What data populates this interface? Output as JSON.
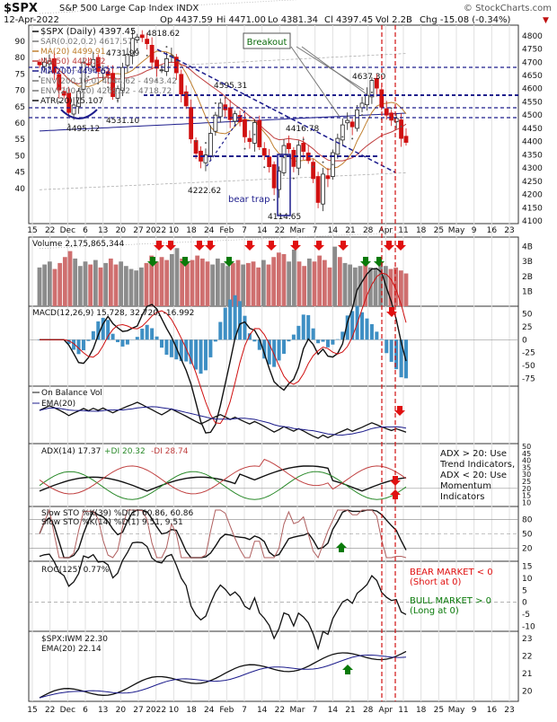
{
  "header": {
    "symbol": "$SPX",
    "name": "S&P 500 Large Cap Index  INDX",
    "date": "12-Apr-2022",
    "open": "Op 4437.59",
    "high": "Hi 4471.00",
    "low": "Lo 4381.34",
    "close": "Cl 4397.45",
    "volume": "Vol 2.2B",
    "change": "Chg -15.08 (-0.34%)",
    "copyright": "© StockCharts.com"
  },
  "colors": {
    "up": "#1f1f1f",
    "down": "#d01010",
    "volUp": "#8c8c8c",
    "volDown": "#cf6f6f",
    "ma20": "#c08030",
    "ma50": "#c04040",
    "ma200": "#1c1c8c",
    "env": "#b0b0b0",
    "arrowGreen": "#0a7a0a",
    "arrowRed": "#e01010",
    "macdHist": "#3e8fc4",
    "bearRed": "#e01010",
    "bullGreen": "#0a7a0a"
  },
  "x_labels": [
    "15",
    "22",
    "Dec",
    "6",
    "13",
    "20",
    "27",
    "2022",
    "10",
    "18",
    "24",
    "Feb",
    "7",
    "14",
    "22",
    "Mar",
    "7",
    "14",
    "21",
    "28",
    "Apr",
    "11",
    "18",
    "25",
    "May",
    "9",
    "16",
    "23"
  ],
  "price_panel": {
    "legend": [
      "$SPX (Daily) 4397.45",
      "SAR(0.02,0.2) 4617.57",
      "MA(20) 4499.91",
      "MA(50) 4424.32",
      "MA(200) 4494.62",
      "ENV(200,10.0) 4044.62 - 4943.42",
      "ENV(200,5.0) 4269.32 - 4718.72",
      "ATR(20) 75.107"
    ],
    "left_ticks": [
      "90",
      "80",
      "75",
      "70",
      "65",
      "60",
      "55",
      "50",
      "45",
      "40"
    ],
    "right_ticks": [
      "4800",
      "4750",
      "4700",
      "4650",
      "4600",
      "4550",
      "4500",
      "4450",
      "4400",
      "4350",
      "4300",
      "4250",
      "4200",
      "4150",
      "4100"
    ],
    "annotations": [
      "4818.62",
      "4731.99",
      "4595.31",
      "4531.10",
      "4495.12",
      "4416.78",
      "4637.30",
      "4222.62",
      "4114.65",
      "Breakout",
      "bear trap"
    ]
  },
  "volume_panel": {
    "legend": "Volume 2,175,865,344",
    "ticks": [
      "4B",
      "3B",
      "2B",
      "1B"
    ]
  },
  "macd_panel": {
    "legend": "MACD(12,26,9) 15.728, 32.720, -16.992",
    "ticks": [
      "50",
      "25",
      "0",
      "-25",
      "-50",
      "-75"
    ]
  },
  "obv_panel": {
    "legend": "On Balance Vol",
    "legend2": "EMA(20)"
  },
  "adx_panel": {
    "legend": "ADX(14) 17.37",
    "plus_di": "+DI 20.32",
    "minus_di": "-DI 28.74",
    "ticks": [
      "50",
      "45",
      "40",
      "35",
      "30",
      "25",
      "20",
      "15",
      "10"
    ],
    "note": [
      "ADX > 20: Use",
      "Trend Indicators,",
      "ADX < 20: Use",
      "Momentum",
      "Indicators"
    ]
  },
  "sto_panel": {
    "legend1": "Slow STO %K(39) %D(1) 60.86, 60.86",
    "legend2": "Slow STO %K(14) %D(1) 9.51, 9.51",
    "ticks": [
      "80",
      "50",
      "20"
    ]
  },
  "roc_panel": {
    "legend": "ROC(125) 0.77%",
    "ticks": [
      "15",
      "10",
      "5",
      "0",
      "-5",
      "-10"
    ],
    "bear": [
      "BEAR MARKET < 0",
      "(Short at 0)"
    ],
    "bull": [
      "BULL MARKET > 0",
      "(Long at 0)"
    ]
  },
  "ratio_panel": {
    "legend": "$SPX:IWM 22.30",
    "legend2": "EMA(20) 22.14",
    "ticks": [
      "23",
      "22",
      "21",
      "20"
    ]
  },
  "chart_data": {
    "type": "line",
    "title": "$SPX S&P 500 Large Cap Index INDX",
    "x_range": [
      "2021-11-15",
      "2022-05-27"
    ],
    "ylim": [
      4090,
      4840
    ],
    "series": [
      {
        "name": "$SPX (Daily) 4397.45",
        "approx_closes": [
          4690,
          4700,
          4705,
          4660,
          4595,
          4575,
          4510,
          4538,
          4590,
          4700,
          4690,
          4710,
          4665,
          4670,
          4650,
          4570,
          4600,
          4680,
          4730,
          4790,
          4795,
          4793,
          4770,
          4700,
          4677,
          4671,
          4713,
          4725,
          4660,
          4580,
          4535,
          4410,
          4356,
          4326,
          4350,
          4431,
          4500,
          4545,
          4520,
          4483,
          4505,
          4475,
          4418,
          4400,
          4472,
          4380,
          4348,
          4305,
          4225,
          4288,
          4385,
          4373,
          4306,
          4386,
          4363,
          4328,
          4260,
          4170,
          4277,
          4260,
          4358,
          4412,
          4463,
          4480,
          4456,
          4520,
          4545,
          4575,
          4631,
          4602,
          4530,
          4500,
          4481,
          4488,
          4412,
          4397
        ]
      }
    ],
    "volume_levels_B": [
      2.6,
      2.8,
      3.0,
      2.5,
      2.9,
      3.3,
      3.7,
      3.2,
      2.7,
      3.0,
      2.8,
      3.1,
      2.6,
      2.9,
      3.2,
      2.8,
      3.0,
      2.7,
      2.5,
      2.4,
      2.6,
      2.9,
      3.4,
      3.0,
      3.3,
      3.1,
      3.5,
      3.9,
      3.2,
      2.9,
      3.1,
      3.4,
      3.2,
      3.0,
      2.8,
      3.2,
      2.9,
      2.7,
      2.9,
      3.1,
      2.8,
      2.9,
      3.0,
      2.6,
      3.1,
      2.8,
      3.3,
      3.6,
      3.5,
      3.0,
      3.8,
      3.0,
      2.7,
      3.2,
      3.0,
      3.4,
      3.1,
      2.6,
      4.0,
      3.3,
      2.9,
      2.8,
      2.6,
      2.7,
      3.0,
      2.6,
      2.5,
      2.9,
      2.7,
      2.5,
      2.6,
      2.4,
      2.2
    ]
  }
}
